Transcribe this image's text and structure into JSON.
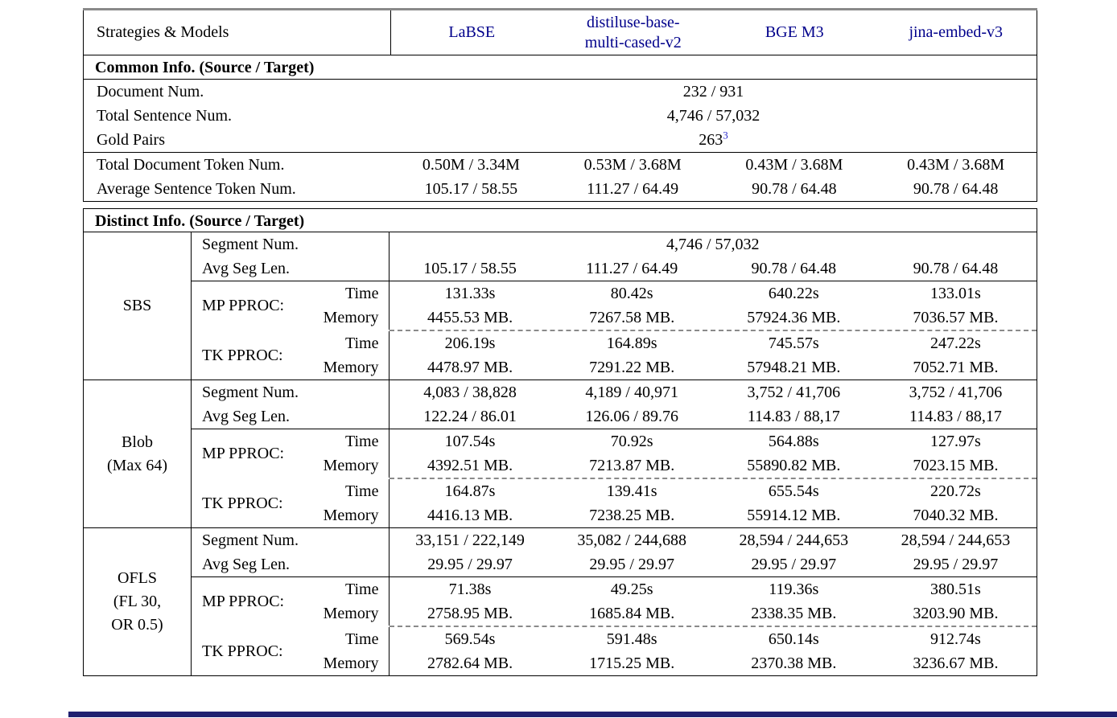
{
  "colors": {
    "model_link": "#00008b",
    "footnote_link": "#2a2acc",
    "top_rule": "#8a8a8a",
    "table_lines": "#000000",
    "dashed_line": "#8a8a8a",
    "bottom_bar": "#202070"
  },
  "table": {
    "header": {
      "label": "Strategies & Models",
      "models": [
        {
          "lines": [
            "LaBSE"
          ]
        },
        {
          "lines": [
            "distiluse-base-",
            "multi-cased-v2"
          ]
        },
        {
          "lines": [
            "BGE M3"
          ]
        },
        {
          "lines": [
            "jina-embed-v3"
          ]
        }
      ]
    },
    "common": {
      "title": "Common Info. (Source / Target)",
      "rows_span": [
        {
          "label": "Document Num.",
          "value": "232 / 931"
        },
        {
          "label": "Total Sentence Num.",
          "value": "4,746 / 57,032"
        },
        {
          "label": "Gold Pairs",
          "value": "263"
        }
      ],
      "gold_footnote": "3",
      "rows_cols": [
        {
          "label": "Total Document Token Num.",
          "values": [
            "0.50M / 3.34M",
            "0.53M / 3.68M",
            "0.43M / 3.68M",
            "0.43M / 3.68M"
          ]
        },
        {
          "label": "Average Sentence Token Num.",
          "values": [
            "105.17 / 58.55",
            "111.27 / 64.49",
            "90.78 / 64.48",
            "90.78 / 64.48"
          ]
        }
      ]
    },
    "distinct": {
      "title": "Distinct Info. (Source / Target)",
      "labels": {
        "segment": "Segment Num.",
        "avg": "Avg Seg Len.",
        "mp": "MP PPROC:",
        "tk": "TK PPROC:",
        "time": "Time",
        "memory": "Memory"
      },
      "strategies": [
        {
          "name": [
            "SBS"
          ],
          "segment_span": "4,746 / 57,032",
          "avg": [
            "105.17 / 58.55",
            "111.27 / 64.49",
            "90.78 / 64.48",
            "90.78 / 64.48"
          ],
          "mp_time": [
            "131.33s",
            "80.42s",
            "640.22s",
            "133.01s"
          ],
          "mp_memory": [
            "4455.53 MB.",
            "7267.58 MB.",
            "57924.36 MB.",
            "7036.57 MB."
          ],
          "tk_time": [
            "206.19s",
            "164.89s",
            "745.57s",
            "247.22s"
          ],
          "tk_memory": [
            "4478.97 MB.",
            "7291.22 MB.",
            "57948.21 MB.",
            "7052.71 MB."
          ]
        },
        {
          "name": [
            "Blob",
            "(Max 64)"
          ],
          "segment": [
            "4,083 / 38,828",
            "4,189 / 40,971",
            "3,752 / 41,706",
            "3,752 / 41,706"
          ],
          "avg": [
            "122.24 / 86.01",
            "126.06 / 89.76",
            "114.83 / 88,17",
            "114.83 / 88,17"
          ],
          "mp_time": [
            "107.54s",
            "70.92s",
            "564.88s",
            "127.97s"
          ],
          "mp_memory": [
            "4392.51 MB.",
            "7213.87 MB.",
            "55890.82 MB.",
            "7023.15 MB."
          ],
          "tk_time": [
            "164.87s",
            "139.41s",
            "655.54s",
            "220.72s"
          ],
          "tk_memory": [
            "4416.13 MB.",
            "7238.25 MB.",
            "55914.12 MB.",
            "7040.32 MB."
          ]
        },
        {
          "name": [
            "OFLS",
            "(FL 30,",
            "OR 0.5)"
          ],
          "segment": [
            "33,151 / 222,149",
            "35,082 / 244,688",
            "28,594 / 244,653",
            "28,594 / 244,653"
          ],
          "avg": [
            "29.95 / 29.97",
            "29.95 / 29.97",
            "29.95 / 29.97",
            "29.95 / 29.97"
          ],
          "mp_time": [
            "71.38s",
            "49.25s",
            "119.36s",
            "380.51s"
          ],
          "mp_memory": [
            "2758.95 MB.",
            "1685.84 MB.",
            "2338.35 MB.",
            "3203.90 MB."
          ],
          "tk_time": [
            "569.54s",
            "591.48s",
            "650.14s",
            "912.74s"
          ],
          "tk_memory": [
            "2782.64 MB.",
            "1715.25 MB.",
            "2370.38 MB.",
            "3236.67 MB."
          ]
        }
      ]
    }
  }
}
